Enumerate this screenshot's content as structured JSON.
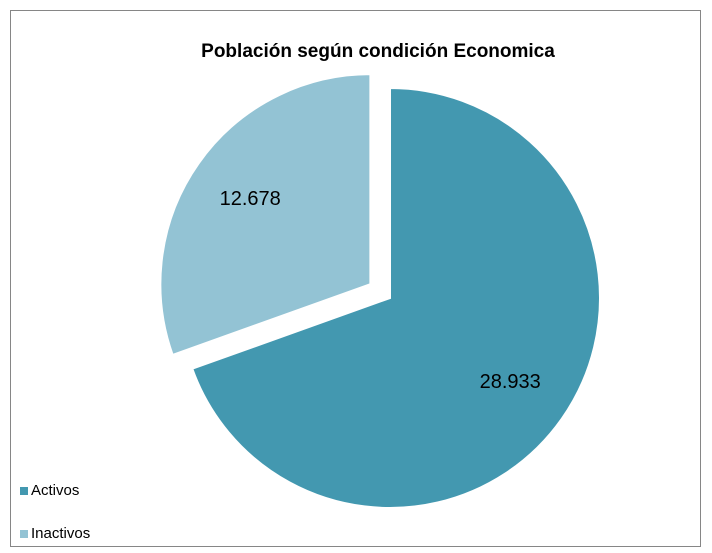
{
  "chart_data": {
    "type": "pie",
    "title": "Población según condición Economica",
    "categories": [
      "Activos",
      "Inactivos"
    ],
    "values": [
      28933,
      12678
    ],
    "value_labels": [
      "28.933",
      "12.678"
    ],
    "colors": [
      "#4398b0",
      "#93c3d4"
    ],
    "legend": "bottom-left"
  }
}
